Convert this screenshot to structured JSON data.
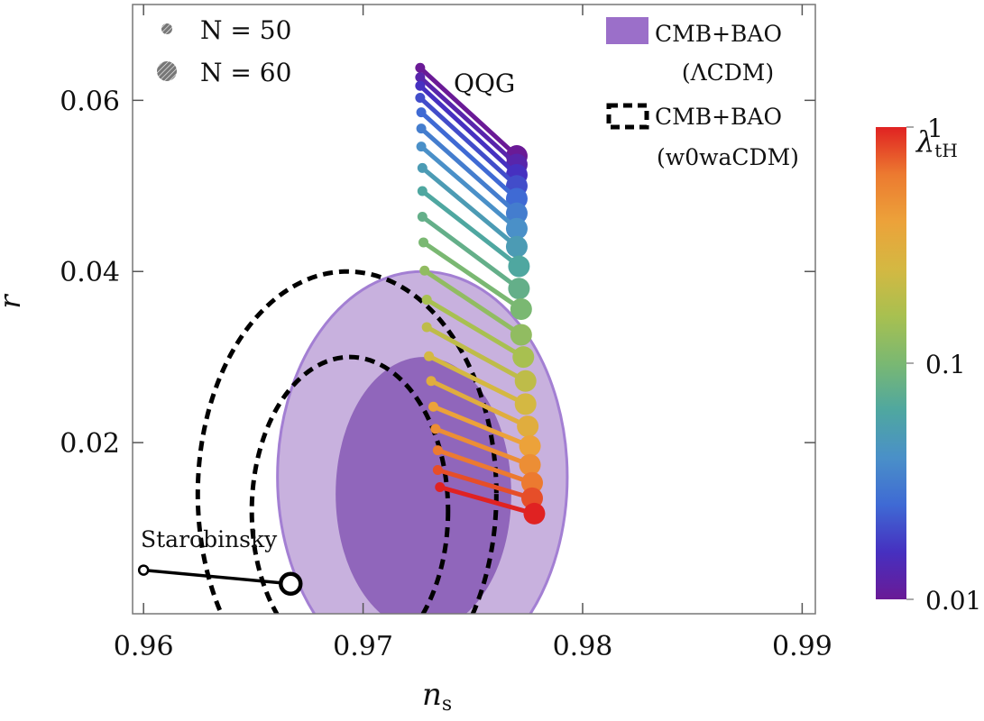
{
  "chart_data": {
    "type": "scatter",
    "xlabel": "n",
    "xlabel_sub": "s",
    "ylabel": "r",
    "xlim": [
      0.9595,
      0.9906
    ],
    "ylim": [
      0.0,
      0.0712
    ],
    "xticks": [
      0.96,
      0.97,
      0.98,
      0.99
    ],
    "xtick_labels": [
      "0.96",
      "0.97",
      "0.98",
      "0.99"
    ],
    "yticks": [
      0.02,
      0.04,
      0.06
    ],
    "ytick_labels": [
      "0.02",
      "0.04",
      "0.06"
    ],
    "grid": false,
    "legend_left": [
      {
        "label": "N = 50",
        "marker": "small-circle"
      },
      {
        "label": "N = 60",
        "marker": "large-circle"
      }
    ],
    "legend_right": [
      {
        "line1": "CMB+BAO",
        "line2": "(ΛCDM)",
        "style": "filled",
        "color": "#9b6fc9"
      },
      {
        "line1": "CMB+BAO",
        "line2": "(w0waCDM)",
        "style": "dashed",
        "color": "#000000"
      }
    ],
    "annotations": {
      "qqg": "QQG",
      "starobinsky": "Starobinsky"
    },
    "colorbar": {
      "label": "λ",
      "label_sub": "tH",
      "scale": "log",
      "range": [
        0.01,
        1
      ],
      "tick_labels": [
        "1",
        "0.1",
        "0.01"
      ],
      "colors": [
        "#6a1a96",
        "#4630c0",
        "#3f6ad4",
        "#4a90c8",
        "#4fa7a0",
        "#7ab872",
        "#a8c050",
        "#d4b842",
        "#eca23a",
        "#ec7a30",
        "#e02222"
      ]
    },
    "contours": {
      "lcdm_1sigma": {
        "center": [
          0.97275,
          0.014
        ],
        "semi": [
          0.004,
          0.016
        ],
        "color": "#9066bb"
      },
      "lcdm_2sigma": {
        "center": [
          0.9727,
          0.016
        ],
        "semi": [
          0.0066,
          0.024
        ],
        "color": "#c8b1de",
        "edge": "#a37fd3"
      },
      "w0wa_1sigma": {
        "center": [
          0.9694,
          0.012
        ],
        "semi": [
          0.00447,
          0.018
        ]
      },
      "w0wa_2sigma": {
        "center": [
          0.96927,
          0.014
        ],
        "semi": [
          0.0068,
          0.026
        ]
      }
    },
    "starobinsky": {
      "n50": [
        0.96,
        0.0051
      ],
      "n60": [
        0.9667,
        0.0035
      ]
    },
    "qqg_series": {
      "lambda_tH": [
        0.01,
        0.0126,
        0.0158,
        0.02,
        0.0251,
        0.0316,
        0.0398,
        0.0501,
        0.0631,
        0.0794,
        0.1,
        0.126,
        0.158,
        0.2,
        0.251,
        0.316,
        0.398,
        0.501,
        0.631,
        0.794,
        1.0
      ],
      "n50_ns": [
        0.9726,
        0.9726,
        0.9726,
        0.9726,
        0.97265,
        0.97265,
        0.97265,
        0.9727,
        0.9727,
        0.9727,
        0.97275,
        0.9728,
        0.9729,
        0.9729,
        0.973,
        0.9731,
        0.9732,
        0.9733,
        0.9734,
        0.9734,
        0.9735
      ],
      "n50_r": [
        0.0638,
        0.0627,
        0.0617,
        0.0603,
        0.0586,
        0.0567,
        0.0546,
        0.0521,
        0.0494,
        0.0464,
        0.0434,
        0.0401,
        0.0367,
        0.0335,
        0.0301,
        0.0272,
        0.0242,
        0.0216,
        0.0191,
        0.0168,
        0.0148
      ],
      "n60_ns": [
        0.977,
        0.977,
        0.977,
        0.977,
        0.977,
        0.977,
        0.977,
        0.977,
        0.9771,
        0.9771,
        0.9772,
        0.9772,
        0.9773,
        0.9774,
        0.9774,
        0.9775,
        0.9776,
        0.9776,
        0.9777,
        0.9777,
        0.9778
      ],
      "n60_r": [
        0.0535,
        0.0525,
        0.0513,
        0.05,
        0.0485,
        0.0468,
        0.045,
        0.0429,
        0.0406,
        0.038,
        0.0356,
        0.0326,
        0.03,
        0.0272,
        0.0245,
        0.0219,
        0.0196,
        0.0174,
        0.0153,
        0.0135,
        0.0117
      ]
    }
  }
}
